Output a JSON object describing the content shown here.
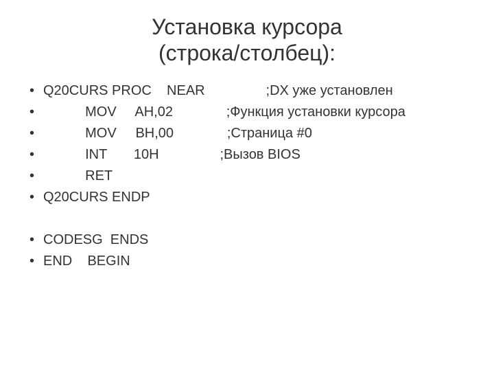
{
  "title_line1": "Установка курсора",
  "title_line2": "(строка/столбец):",
  "lines": [
    {
      "text": "Q20CURS PROC    NEAR                ;DX уже установлен",
      "blank": false
    },
    {
      "text": "           MOV     AH,02              ;Функция установки курсора",
      "blank": false
    },
    {
      "text": "           MOV     BH,00              ;Страница #0",
      "blank": false
    },
    {
      "text": "           INT       10H                ;Вызов BIOS",
      "blank": false
    },
    {
      "text": "           RET",
      "blank": false
    },
    {
      "text": "Q20CURS ENDP",
      "blank": false
    },
    {
      "text": " ",
      "blank": true
    },
    {
      "text": "CODESG  ENDS",
      "blank": false
    },
    {
      "text": "END    BEGIN",
      "blank": false
    }
  ],
  "colors": {
    "background": "#ffffff",
    "text": "#333333"
  },
  "fontsize": {
    "title": 32,
    "body": 20
  }
}
